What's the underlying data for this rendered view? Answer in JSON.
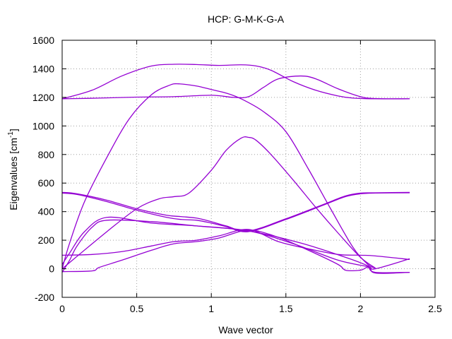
{
  "chart_data": {
    "type": "line",
    "title": "HCP: G-M-K-G-A",
    "xlabel": "Wave vector",
    "ylabel_main": "Eigenvalues [cm",
    "ylabel_sup": "-1",
    "ylabel_close": "]",
    "xlim": [
      0,
      2.5
    ],
    "ylim": [
      -200,
      1600
    ],
    "xticks": [
      0,
      0.5,
      1,
      1.5,
      2,
      2.5
    ],
    "xtick_labels": [
      "0",
      "0.5",
      "1",
      "1.5",
      "2",
      "2.5"
    ],
    "yticks": [
      -200,
      0,
      200,
      400,
      600,
      800,
      1000,
      1200,
      1400,
      1600
    ],
    "ytick_labels": [
      "-200",
      "0",
      "200",
      "400",
      "600",
      "800",
      "1000",
      "1200",
      "1400",
      "1600"
    ],
    "grid": true,
    "line_color": "#9400d3",
    "zero_line": true,
    "series": [
      {
        "x": [
          0,
          0.2,
          0.4,
          0.6,
          0.75,
          0.9,
          1.05,
          1.2,
          1.3,
          1.4,
          1.55,
          1.7,
          1.85,
          1.95,
          2.1,
          2.33
        ],
        "y": [
          1190,
          1250,
          1350,
          1420,
          1432,
          1430,
          1424,
          1428,
          1420,
          1390,
          1310,
          1250,
          1210,
          1195,
          1190,
          1190
        ]
      },
      {
        "x": [
          0,
          0.25,
          0.5,
          0.75,
          1.0,
          1.15,
          1.25,
          1.35,
          1.45,
          1.6,
          1.7,
          1.85,
          2.0,
          2.1,
          2.33
        ],
        "y": [
          1190,
          1195,
          1202,
          1205,
          1215,
          1200,
          1205,
          1270,
          1330,
          1350,
          1330,
          1260,
          1205,
          1192,
          1190
        ]
      },
      {
        "x": [
          0,
          0.05,
          0.15,
          0.3,
          0.45,
          0.6,
          0.72,
          0.78,
          0.9,
          1.0,
          1.1,
          1.2,
          1.35,
          1.5,
          1.65,
          1.8,
          1.95,
          2.05,
          2.1
        ],
        "y": [
          0,
          180,
          470,
          780,
          1050,
          1220,
          1285,
          1295,
          1280,
          1255,
          1230,
          1190,
          1100,
          960,
          700,
          420,
          150,
          30,
          5
        ]
      },
      {
        "x": [
          0,
          0.3,
          0.5,
          0.65,
          0.75,
          0.85,
          1.0,
          1.1,
          1.2,
          1.25,
          1.3,
          1.4,
          1.55,
          1.7,
          1.85,
          2.0,
          2.1
        ],
        "y": [
          0,
          260,
          420,
          490,
          505,
          530,
          690,
          830,
          915,
          920,
          900,
          800,
          620,
          430,
          250,
          80,
          5
        ]
      },
      {
        "x": [
          0,
          0.1,
          0.3,
          0.5,
          0.7,
          0.8,
          0.9,
          1.0,
          1.1,
          1.25,
          1.5,
          1.75,
          1.9,
          2.0,
          2.1,
          2.33
        ],
        "y": [
          535,
          525,
          480,
          420,
          375,
          365,
          355,
          330,
          300,
          265,
          350,
          450,
          510,
          530,
          532,
          535
        ]
      },
      {
        "x": [
          0,
          0.1,
          0.3,
          0.5,
          0.7,
          0.8,
          0.9,
          1.0,
          1.1,
          1.25,
          1.5,
          1.75,
          1.9,
          2.0,
          2.1,
          2.33
        ],
        "y": [
          530,
          520,
          470,
          410,
          360,
          345,
          340,
          320,
          295,
          260,
          345,
          445,
          505,
          525,
          530,
          532
        ]
      },
      {
        "x": [
          0,
          0.2,
          0.4,
          0.6,
          0.75,
          0.9,
          1.05,
          1.25,
          1.45,
          1.65,
          1.85,
          2.0,
          2.1,
          2.33
        ],
        "y": [
          95,
          100,
          120,
          160,
          190,
          200,
          230,
          275,
          190,
          140,
          100,
          95,
          90,
          65
        ]
      },
      {
        "x": [
          0,
          0.2,
          0.25,
          0.4,
          0.6,
          0.75,
          0.9,
          1.05,
          1.25,
          1.45,
          1.65,
          1.85,
          1.9,
          2.0,
          2.05,
          2.1,
          2.33
        ],
        "y": [
          -20,
          -15,
          10,
          60,
          130,
          175,
          190,
          215,
          270,
          220,
          130,
          30,
          -10,
          -10,
          10,
          -25,
          -25
        ]
      },
      {
        "x": [
          0,
          0.05,
          0.1,
          0.2,
          0.3,
          0.6,
          0.9,
          1.25,
          1.6,
          1.9,
          2.05,
          2.1,
          2.33
        ],
        "y": [
          -25,
          60,
          160,
          290,
          340,
          330,
          300,
          265,
          180,
          80,
          20,
          -30,
          -25
        ]
      },
      {
        "x": [
          0,
          0.05,
          0.15,
          0.3,
          0.6,
          0.9,
          1.25,
          1.55,
          1.85,
          2.05,
          2.1,
          2.33
        ],
        "y": [
          30,
          110,
          260,
          360,
          320,
          300,
          265,
          175,
          60,
          15,
          0,
          70
        ]
      }
    ]
  }
}
